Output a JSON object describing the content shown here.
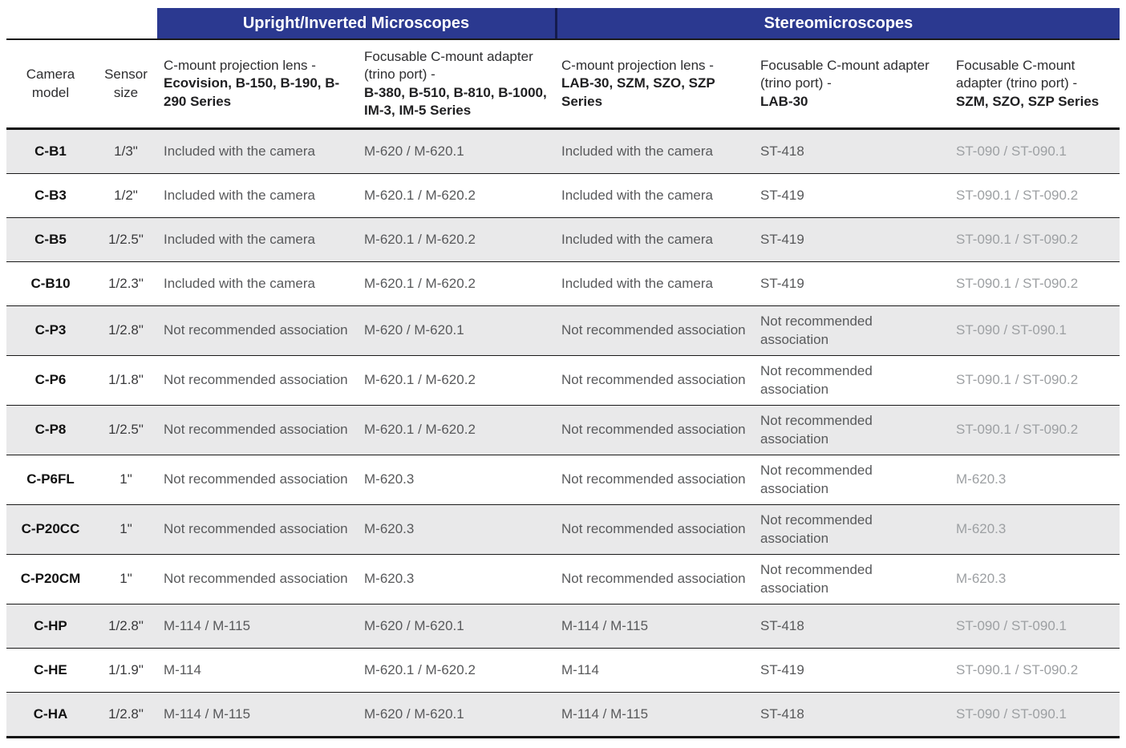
{
  "table": {
    "group_headers": [
      {
        "label": "Upright/Inverted Microscopes"
      },
      {
        "label": "Stereomicroscopes"
      }
    ],
    "columns": [
      {
        "label": "Camera model"
      },
      {
        "label": "Sensor size"
      },
      {
        "prefix": "C-mount projection lens -",
        "models": "Ecovision, B-150, B-190, B-290 Series"
      },
      {
        "prefix": "Focusable C-mount adapter (trino port) -",
        "models": "B-380, B-510, B-810, B-1000, IM-3, IM-5 Series"
      },
      {
        "prefix": "C-mount projection lens -",
        "models": "LAB-30, SZM, SZO, SZP Series"
      },
      {
        "prefix": "Focusable C-mount adapter (trino port) -",
        "models": "LAB-30"
      },
      {
        "prefix": "Focusable C-mount adapter (trino port) -",
        "models": "SZM, SZO, SZP Series"
      }
    ],
    "rows": [
      {
        "model": "C-B1",
        "sensor": "1/3\"",
        "cells": [
          "Included with the camera",
          "M-620 / M-620.1",
          "Included with the camera",
          "ST-418",
          "ST-090 / ST-090.1"
        ]
      },
      {
        "model": "C-B3",
        "sensor": "1/2\"",
        "cells": [
          "Included with the camera",
          "M-620.1 / M-620.2",
          "Included with the camera",
          "ST-419",
          "ST-090.1 / ST-090.2"
        ]
      },
      {
        "model": "C-B5",
        "sensor": "1/2.5\"",
        "cells": [
          "Included with the camera",
          "M-620.1 / M-620.2",
          "Included with the camera",
          "ST-419",
          "ST-090.1 / ST-090.2"
        ]
      },
      {
        "model": "C-B10",
        "sensor": "1/2.3\"",
        "cells": [
          "Included with the camera",
          "M-620.1 / M-620.2",
          "Included with the camera",
          "ST-419",
          "ST-090.1 / ST-090.2"
        ]
      },
      {
        "model": "C-P3",
        "sensor": "1/2.8\"",
        "cells": [
          "Not recommended association",
          "M-620 / M-620.1",
          "Not recommended association",
          "Not recommended association",
          "ST-090 / ST-090.1"
        ]
      },
      {
        "model": "C-P6",
        "sensor": "1/1.8\"",
        "cells": [
          "Not recommended association",
          "M-620.1 / M-620.2",
          "Not recommended association",
          "Not recommended association",
          "ST-090.1 / ST-090.2"
        ]
      },
      {
        "model": "C-P8",
        "sensor": "1/2.5\"",
        "cells": [
          "Not recommended association",
          "M-620.1 / M-620.2",
          "Not recommended association",
          "Not recommended association",
          "ST-090.1 / ST-090.2"
        ]
      },
      {
        "model": "C-P6FL",
        "sensor": "1\"",
        "cells": [
          "Not recommended association",
          "M-620.3",
          "Not recommended association",
          "Not recommended association",
          "M-620.3"
        ]
      },
      {
        "model": "C-P20CC",
        "sensor": "1\"",
        "cells": [
          "Not recommended association",
          "M-620.3",
          "Not recommended association",
          "Not recommended association",
          "M-620.3"
        ]
      },
      {
        "model": "C-P20CM",
        "sensor": "1\"",
        "cells": [
          "Not recommended association",
          "M-620.3",
          "Not recommended association",
          "Not recommended association",
          "M-620.3"
        ]
      },
      {
        "model": "C-HP",
        "sensor": "1/2.8\"",
        "cells": [
          "M-114 / M-115",
          "M-620 / M-620.1",
          "M-114 / M-115",
          "ST-418",
          "ST-090 / ST-090.1"
        ]
      },
      {
        "model": "C-HE",
        "sensor": "1/1.9\"",
        "cells": [
          "M-114",
          "M-620.1 / M-620.2",
          "M-114",
          "ST-419",
          "ST-090.1 / ST-090.2"
        ]
      },
      {
        "model": "C-HA",
        "sensor": "1/2.8\"",
        "cells": [
          "M-114 / M-115",
          "M-620 / M-620.1",
          "M-114 / M-115",
          "ST-418",
          "ST-090 / ST-090.1"
        ]
      }
    ]
  },
  "colors": {
    "band_blue": "#2b3990",
    "band_text": "#ffffff",
    "shaded_row": "#e9e9ea",
    "cell_text": "#58595b",
    "light_cell_text": "#9da0a3",
    "rule": "#111111"
  }
}
